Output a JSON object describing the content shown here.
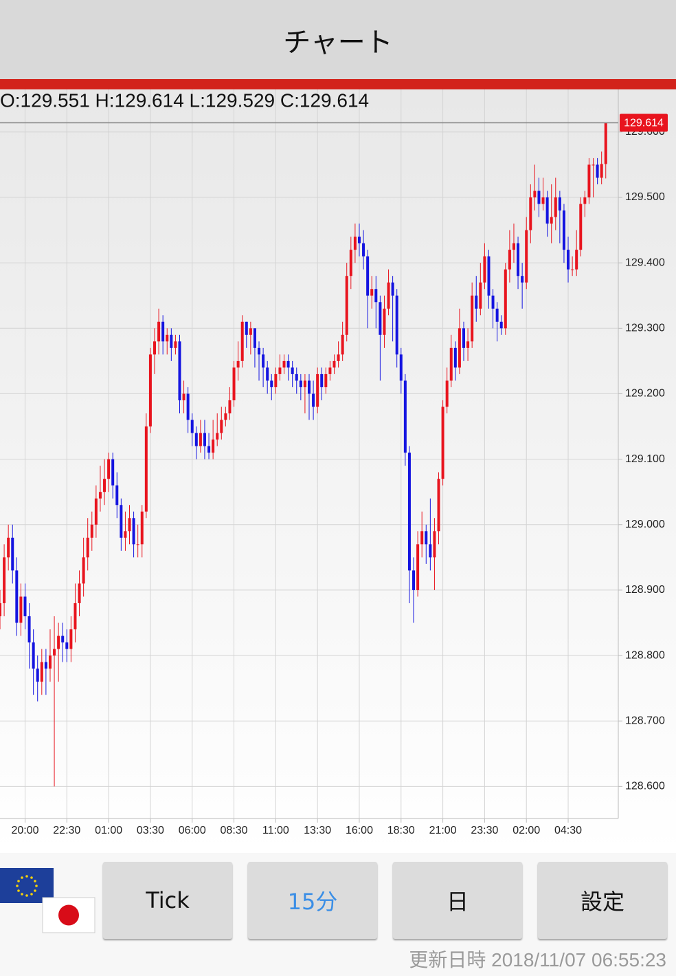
{
  "header": {
    "title": "チャート"
  },
  "chart_data": {
    "type": "candlestick",
    "ohlc_text": "O:129.551 H:129.614 L:129.529 C:129.614",
    "up_color": "#e8141e",
    "down_color": "#1414e0",
    "grid": true,
    "ylim": [
      128.551,
      129.665
    ],
    "yticks": [
      {
        "value": 128.6,
        "label": "128.600"
      },
      {
        "value": 128.7,
        "label": "128.700"
      },
      {
        "value": 128.8,
        "label": "128.800"
      },
      {
        "value": 128.9,
        "label": "128.900"
      },
      {
        "value": 129.0,
        "label": "129.000"
      },
      {
        "value": 129.1,
        "label": "129.100"
      },
      {
        "value": 129.2,
        "label": "129.200"
      },
      {
        "value": 129.3,
        "label": "129.300"
      },
      {
        "value": 129.4,
        "label": "129.400"
      },
      {
        "value": 129.5,
        "label": "129.500"
      },
      {
        "value": 129.6,
        "label": "129.600"
      }
    ],
    "xlim": [
      0,
      148
    ],
    "xticks": [
      {
        "value": 6,
        "label": "20:00"
      },
      {
        "value": 16,
        "label": "22:30"
      },
      {
        "value": 26,
        "label": "01:00"
      },
      {
        "value": 36,
        "label": "03:30"
      },
      {
        "value": 46,
        "label": "06:00"
      },
      {
        "value": 56,
        "label": "08:30"
      },
      {
        "value": 66,
        "label": "11:00"
      },
      {
        "value": 76,
        "label": "13:30"
      },
      {
        "value": 86,
        "label": "16:00"
      },
      {
        "value": 96,
        "label": "18:30"
      },
      {
        "value": 106,
        "label": "21:00"
      },
      {
        "value": 116,
        "label": "23:30"
      },
      {
        "value": 126,
        "label": "02:00"
      },
      {
        "value": 136,
        "label": "04:30"
      }
    ],
    "open": [
      128.86,
      128.88,
      128.95,
      128.98,
      128.93,
      128.85,
      128.89,
      128.86,
      128.82,
      128.78,
      128.76,
      128.79,
      128.78,
      128.8,
      128.81,
      128.83,
      128.82,
      128.81,
      128.84,
      128.88,
      128.91,
      128.95,
      128.98,
      129.0,
      129.04,
      129.05,
      129.07,
      129.1,
      129.06,
      129.03,
      128.98,
      128.99,
      129.01,
      128.97,
      128.97,
      129.02,
      129.15,
      129.26,
      129.28,
      129.31,
      129.28,
      129.29,
      129.27,
      129.28,
      129.19,
      129.2,
      129.16,
      129.14,
      129.12,
      129.14,
      129.12,
      129.11,
      129.13,
      129.14,
      129.16,
      129.17,
      129.19,
      129.24,
      129.25,
      129.31,
      129.29,
      129.3,
      129.27,
      129.26,
      129.24,
      129.22,
      129.21,
      129.23,
      129.24,
      129.25,
      129.24,
      129.23,
      129.22,
      129.21,
      129.22,
      129.2,
      129.18,
      129.23,
      129.21,
      129.23,
      129.24,
      129.25,
      129.26,
      129.29,
      129.38,
      129.42,
      129.44,
      129.43,
      129.41,
      129.35,
      129.36,
      129.34,
      129.29,
      129.33,
      129.37,
      129.35,
      129.26,
      129.22,
      129.11,
      128.93,
      128.9,
      128.97,
      128.99,
      128.97,
      128.95,
      128.99,
      129.07,
      129.18,
      129.22,
      129.27,
      129.24,
      129.3,
      129.27,
      129.28,
      129.35,
      129.33,
      129.37,
      129.41,
      129.35,
      129.33,
      129.31,
      129.3,
      129.39,
      129.42,
      129.43,
      129.38,
      129.37,
      129.45,
      129.5,
      129.51,
      129.49,
      129.5,
      129.46,
      129.47,
      129.5,
      129.48,
      129.42,
      129.39,
      129.39,
      129.42,
      129.49,
      129.5,
      129.55,
      129.55,
      129.53,
      129.551
    ],
    "high": [
      128.9,
      128.97,
      129.0,
      129.0,
      128.95,
      128.91,
      128.91,
      128.88,
      128.84,
      128.8,
      128.81,
      128.81,
      128.84,
      128.86,
      128.85,
      128.85,
      128.84,
      128.86,
      128.91,
      128.93,
      128.98,
      129.01,
      129.02,
      129.06,
      129.09,
      129.1,
      129.11,
      129.11,
      129.08,
      129.04,
      129.02,
      129.03,
      129.02,
      129.0,
      129.03,
      129.17,
      129.27,
      129.3,
      129.33,
      129.32,
      129.3,
      129.3,
      129.29,
      129.29,
      129.22,
      129.21,
      129.17,
      129.15,
      129.16,
      129.16,
      129.14,
      129.16,
      129.17,
      129.18,
      129.18,
      129.21,
      129.25,
      129.28,
      129.32,
      129.31,
      129.31,
      129.3,
      129.28,
      129.27,
      129.25,
      129.23,
      129.24,
      129.26,
      129.26,
      129.26,
      129.25,
      129.24,
      129.23,
      129.23,
      129.23,
      129.22,
      129.24,
      129.24,
      129.24,
      129.25,
      129.26,
      129.28,
      129.31,
      129.4,
      129.44,
      129.46,
      129.46,
      129.45,
      129.42,
      129.38,
      129.38,
      129.35,
      129.35,
      129.39,
      129.38,
      129.36,
      129.27,
      129.23,
      129.12,
      128.95,
      128.99,
      129.02,
      129.0,
      129.04,
      129.01,
      129.08,
      129.19,
      129.24,
      129.29,
      129.28,
      129.33,
      129.31,
      129.3,
      129.37,
      129.38,
      129.4,
      129.43,
      129.42,
      129.36,
      129.34,
      129.32,
      129.4,
      129.45,
      129.46,
      129.44,
      129.4,
      129.47,
      129.52,
      129.55,
      129.53,
      129.53,
      129.51,
      129.52,
      129.53,
      129.51,
      129.49,
      129.44,
      129.41,
      129.45,
      129.5,
      129.51,
      129.56,
      129.56,
      129.56,
      129.57,
      129.614
    ],
    "low": [
      128.84,
      128.86,
      128.93,
      128.91,
      128.83,
      128.83,
      128.84,
      128.78,
      128.74,
      128.73,
      128.74,
      128.74,
      128.76,
      128.6,
      128.76,
      128.79,
      128.79,
      128.79,
      128.82,
      128.86,
      128.89,
      128.93,
      128.96,
      128.98,
      129.02,
      129.03,
      129.05,
      129.04,
      129.01,
      128.96,
      128.96,
      128.97,
      128.95,
      128.95,
      128.95,
      129.01,
      129.14,
      129.23,
      129.26,
      129.26,
      129.26,
      129.25,
      129.26,
      129.17,
      129.17,
      129.14,
      129.12,
      129.1,
      129.11,
      129.1,
      129.1,
      129.1,
      129.12,
      129.13,
      129.15,
      129.16,
      129.18,
      129.22,
      129.24,
      129.27,
      129.26,
      129.24,
      129.22,
      129.21,
      129.2,
      129.19,
      129.2,
      129.22,
      129.23,
      129.22,
      129.21,
      129.2,
      129.19,
      129.17,
      129.16,
      129.16,
      129.17,
      129.19,
      129.2,
      129.22,
      129.23,
      129.24,
      129.25,
      129.28,
      129.36,
      129.4,
      129.41,
      129.39,
      129.3,
      129.33,
      129.3,
      129.22,
      129.27,
      129.32,
      129.28,
      129.24,
      129.2,
      129.09,
      128.88,
      128.85,
      128.89,
      128.95,
      128.94,
      128.93,
      128.9,
      128.97,
      129.06,
      129.17,
      129.21,
      129.22,
      129.23,
      129.25,
      129.25,
      129.27,
      129.31,
      129.32,
      129.36,
      129.33,
      129.3,
      129.28,
      129.29,
      129.29,
      129.37,
      129.4,
      129.36,
      129.33,
      129.36,
      129.43,
      129.48,
      129.47,
      129.48,
      129.44,
      129.43,
      129.45,
      129.43,
      129.4,
      129.37,
      129.38,
      129.38,
      129.41,
      129.47,
      129.49,
      129.5,
      129.52,
      129.52,
      129.529
    ],
    "close": [
      128.88,
      128.95,
      128.98,
      128.93,
      128.85,
      128.89,
      128.86,
      128.82,
      128.78,
      128.76,
      128.79,
      128.78,
      128.8,
      128.81,
      128.83,
      128.82,
      128.81,
      128.84,
      128.88,
      128.91,
      128.95,
      128.98,
      129.0,
      129.04,
      129.05,
      129.07,
      129.1,
      129.06,
      129.03,
      128.98,
      128.99,
      129.01,
      128.97,
      128.97,
      129.02,
      129.15,
      129.26,
      129.28,
      129.31,
      129.28,
      129.29,
      129.27,
      129.28,
      129.19,
      129.2,
      129.16,
      129.14,
      129.12,
      129.14,
      129.12,
      129.11,
      129.13,
      129.14,
      129.16,
      129.17,
      129.19,
      129.24,
      129.25,
      129.31,
      129.29,
      129.3,
      129.27,
      129.26,
      129.24,
      129.22,
      129.21,
      129.23,
      129.24,
      129.25,
      129.24,
      129.23,
      129.22,
      129.21,
      129.22,
      129.2,
      129.18,
      129.23,
      129.21,
      129.23,
      129.24,
      129.25,
      129.26,
      129.29,
      129.38,
      129.42,
      129.44,
      129.43,
      129.41,
      129.35,
      129.36,
      129.34,
      129.29,
      129.33,
      129.37,
      129.35,
      129.26,
      129.22,
      129.11,
      128.93,
      128.9,
      128.97,
      128.99,
      128.97,
      128.95,
      128.99,
      129.07,
      129.18,
      129.22,
      129.27,
      129.24,
      129.3,
      129.27,
      129.28,
      129.35,
      129.33,
      129.37,
      129.41,
      129.35,
      129.33,
      129.31,
      129.3,
      129.39,
      129.42,
      129.43,
      129.38,
      129.37,
      129.45,
      129.5,
      129.51,
      129.49,
      129.5,
      129.46,
      129.47,
      129.5,
      129.48,
      129.42,
      129.39,
      129.39,
      129.42,
      129.49,
      129.5,
      129.55,
      129.55,
      129.53,
      129.551,
      129.614
    ]
  },
  "flags": [
    "EUR",
    "JPY"
  ],
  "buttons": [
    "Tick",
    "15分",
    "日",
    "設定"
  ],
  "active_button": 1,
  "footer": {
    "updated_label": "更新日時",
    "updated_time": "2018/11/07 06:55:23"
  }
}
